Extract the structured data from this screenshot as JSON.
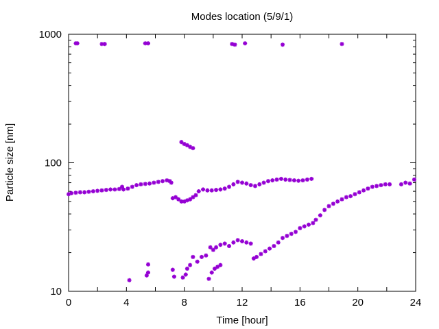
{
  "chart_data": {
    "type": "scatter",
    "title": "Modes location (5/9/1)",
    "xlabel": "Time [hour]",
    "ylabel": "Particle size [nm]",
    "xlim": [
      0,
      24
    ],
    "ylim": [
      10,
      1000
    ],
    "yscale": "log",
    "grid": false,
    "marker_color": "#9400d3",
    "xticks": [
      0,
      4,
      8,
      12,
      16,
      20,
      24
    ],
    "xtick_labels": [
      "0",
      "4",
      "8",
      "12",
      "16",
      "20",
      "24"
    ],
    "yticks": [
      10,
      100,
      1000
    ],
    "ytick_labels": [
      "10",
      "100",
      "1000"
    ],
    "series": [
      {
        "points": [
          [
            0.5,
            850
          ],
          [
            0.6,
            850
          ],
          [
            2.3,
            840
          ],
          [
            2.5,
            840
          ],
          [
            5.3,
            850
          ],
          [
            5.5,
            850
          ],
          [
            11.3,
            840
          ],
          [
            11.5,
            830
          ],
          [
            12.2,
            850
          ],
          [
            14.8,
            830
          ],
          [
            18.9,
            840
          ],
          [
            7.8,
            145
          ],
          [
            8.0,
            140
          ],
          [
            8.2,
            137
          ],
          [
            8.4,
            133
          ],
          [
            8.6,
            130
          ],
          [
            0.0,
            57
          ],
          [
            0.2,
            58
          ],
          [
            0.5,
            58.5
          ],
          [
            0.8,
            59
          ],
          [
            1.1,
            59
          ],
          [
            1.4,
            59.5
          ],
          [
            1.7,
            60
          ],
          [
            2.0,
            60.5
          ],
          [
            2.3,
            61
          ],
          [
            2.6,
            61.5
          ],
          [
            2.9,
            62
          ],
          [
            3.2,
            62
          ],
          [
            3.5,
            62.5
          ],
          [
            3.7,
            65
          ],
          [
            3.8,
            62
          ],
          [
            4.1,
            63
          ],
          [
            4.4,
            65
          ],
          [
            4.7,
            67
          ],
          [
            5.0,
            68
          ],
          [
            5.3,
            68.5
          ],
          [
            5.6,
            69
          ],
          [
            5.9,
            70
          ],
          [
            6.2,
            71
          ],
          [
            6.5,
            72
          ],
          [
            6.8,
            73
          ],
          [
            7.0,
            72
          ],
          [
            7.1,
            70
          ],
          [
            7.2,
            53
          ],
          [
            7.4,
            54
          ],
          [
            7.6,
            52
          ],
          [
            7.8,
            50
          ],
          [
            8.0,
            50
          ],
          [
            8.2,
            51
          ],
          [
            8.4,
            52
          ],
          [
            8.6,
            54
          ],
          [
            8.8,
            56
          ],
          [
            9.0,
            60
          ],
          [
            9.3,
            62
          ],
          [
            9.6,
            61
          ],
          [
            9.9,
            61
          ],
          [
            10.2,
            61.5
          ],
          [
            10.5,
            62
          ],
          [
            10.8,
            63
          ],
          [
            11.1,
            65
          ],
          [
            11.4,
            68
          ],
          [
            11.7,
            71
          ],
          [
            12.0,
            70
          ],
          [
            12.3,
            69
          ],
          [
            12.6,
            67
          ],
          [
            12.9,
            66
          ],
          [
            13.2,
            68
          ],
          [
            13.5,
            70
          ],
          [
            13.8,
            72
          ],
          [
            14.1,
            73
          ],
          [
            14.4,
            74
          ],
          [
            14.7,
            75
          ],
          [
            15.0,
            74
          ],
          [
            15.3,
            73.5
          ],
          [
            15.6,
            73
          ],
          [
            15.9,
            72.5
          ],
          [
            16.2,
            73
          ],
          [
            16.5,
            74
          ],
          [
            16.8,
            75
          ],
          [
            4.2,
            12.2
          ],
          [
            5.4,
            13.3
          ],
          [
            5.5,
            14
          ],
          [
            5.5,
            16.2
          ],
          [
            7.2,
            14.7
          ],
          [
            7.3,
            13
          ],
          [
            7.9,
            12.8
          ],
          [
            8.1,
            13.5
          ],
          [
            8.2,
            15
          ],
          [
            8.4,
            16
          ],
          [
            8.6,
            18.5
          ],
          [
            8.9,
            17
          ],
          [
            9.2,
            18.5
          ],
          [
            9.5,
            19
          ],
          [
            9.8,
            22
          ],
          [
            10.0,
            21
          ],
          [
            10.2,
            22
          ],
          [
            10.5,
            23
          ],
          [
            10.8,
            23.5
          ],
          [
            11.1,
            22.5
          ],
          [
            11.4,
            24
          ],
          [
            11.7,
            25
          ],
          [
            12.0,
            24.5
          ],
          [
            12.3,
            24
          ],
          [
            12.6,
            23.5
          ],
          [
            9.7,
            12.5
          ],
          [
            9.9,
            14
          ],
          [
            10.1,
            15
          ],
          [
            10.3,
            15.5
          ],
          [
            10.5,
            16
          ],
          [
            12.8,
            18
          ],
          [
            13.0,
            18.5
          ],
          [
            13.3,
            19.5
          ],
          [
            13.6,
            20.5
          ],
          [
            13.9,
            21.5
          ],
          [
            14.2,
            22.5
          ],
          [
            14.5,
            24
          ],
          [
            14.8,
            26
          ],
          [
            15.1,
            27
          ],
          [
            15.4,
            28
          ],
          [
            15.7,
            29
          ],
          [
            16.0,
            31
          ],
          [
            16.3,
            32
          ],
          [
            16.6,
            33
          ],
          [
            16.9,
            34
          ],
          [
            17.1,
            36
          ],
          [
            17.4,
            39
          ],
          [
            17.7,
            43
          ],
          [
            18.0,
            46
          ],
          [
            18.3,
            48
          ],
          [
            18.6,
            50
          ],
          [
            18.9,
            52
          ],
          [
            19.2,
            54
          ],
          [
            19.5,
            55
          ],
          [
            19.8,
            57
          ],
          [
            20.1,
            59
          ],
          [
            20.4,
            61
          ],
          [
            20.7,
            63
          ],
          [
            21.0,
            65
          ],
          [
            21.3,
            66
          ],
          [
            21.6,
            67
          ],
          [
            21.9,
            68
          ],
          [
            22.2,
            68
          ],
          [
            23.0,
            68
          ],
          [
            23.3,
            70
          ],
          [
            23.6,
            69
          ],
          [
            23.9,
            74
          ]
        ]
      }
    ]
  }
}
